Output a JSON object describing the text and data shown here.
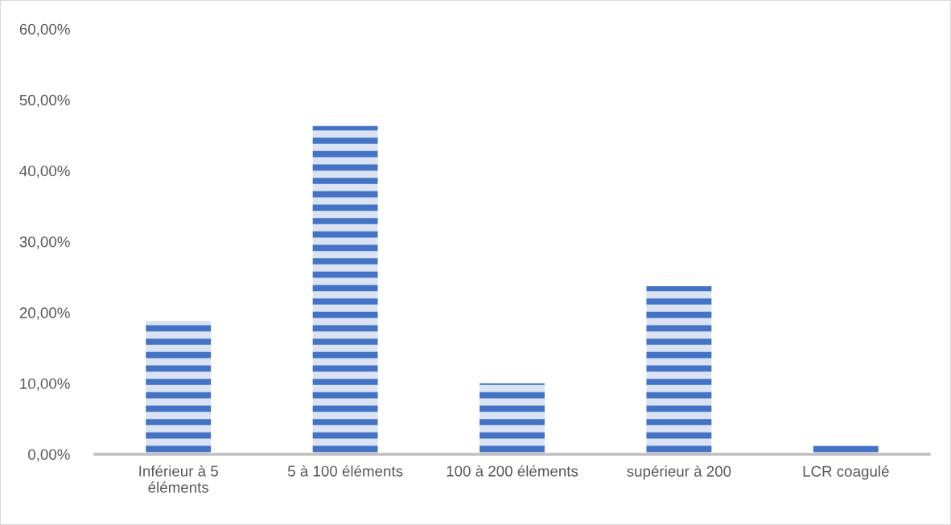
{
  "chart_data": {
    "type": "bar",
    "categories": [
      "Inférieur à 5\néléments",
      "5 à 100 éléments",
      "100 à 200 éléments",
      "supérieur à 200",
      "LCR coagulé"
    ],
    "values": [
      18.8,
      46.3,
      10.0,
      23.7,
      1.2
    ],
    "color": "#4472c4",
    "ylim": [
      0,
      60
    ],
    "yticks": [
      {
        "value": 0,
        "label": "0,00%"
      },
      {
        "value": 10,
        "label": "10,00%"
      },
      {
        "value": 20,
        "label": "20,00%"
      },
      {
        "value": 30,
        "label": "30,00%"
      },
      {
        "value": 40,
        "label": "40,00%"
      },
      {
        "value": 50,
        "label": "50,00%"
      },
      {
        "value": 60,
        "label": "60,00%"
      }
    ],
    "grid": false,
    "legend": false
  }
}
